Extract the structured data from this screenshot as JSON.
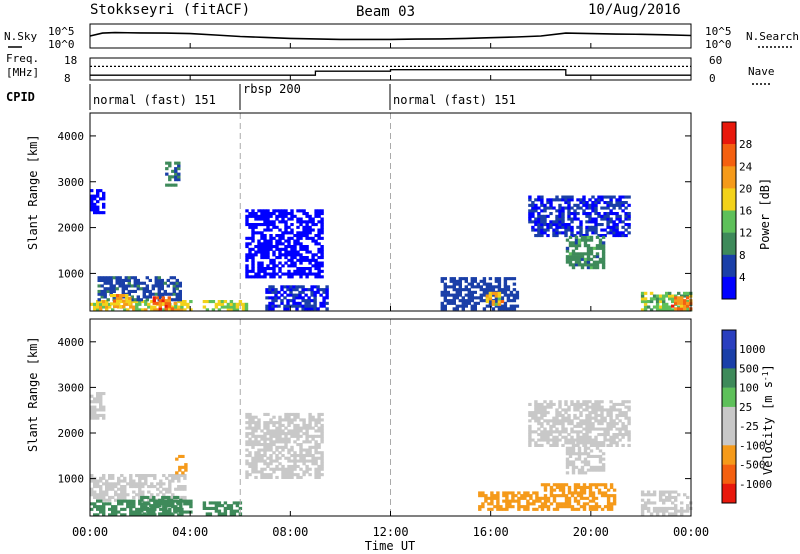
{
  "header": {
    "station": "Stokkseyri (fitACF)",
    "beam": "Beam 03",
    "date": "10/Aug/2016"
  },
  "top_panel": {
    "left_label": "N.Sky",
    "left_ticks": [
      "10^5",
      "10^0"
    ],
    "right_label": "N.Search",
    "right_ticks": [
      "10^5",
      "10^0"
    ]
  },
  "freq_panel": {
    "left_label_1": "Freq.",
    "left_label_2": "[MHz]",
    "left_ticks": [
      "18",
      "8"
    ],
    "right_label": "Nave",
    "right_ticks": [
      "60",
      "0"
    ]
  },
  "cpid": {
    "label": "CPID",
    "modes": [
      {
        "label": "normal (fast) 151",
        "start_hour": 0
      },
      {
        "label": "rbsp 200",
        "start_hour": 6
      },
      {
        "label": "normal (fast) 151",
        "start_hour": 12
      }
    ]
  },
  "x_axis": {
    "title": "Time UT",
    "ticks": [
      "00:00",
      "04:00",
      "08:00",
      "12:00",
      "16:00",
      "20:00",
      "00:00"
    ]
  },
  "colors": {
    "power_scale": [
      "#0000ff",
      "#1a3fa8",
      "#3e8a5a",
      "#5ec05a",
      "#f3d21a",
      "#f59a1a",
      "#f46010",
      "#e8180c"
    ],
    "velocity_scale": [
      "#e8180c",
      "#f46010",
      "#f59a1a",
      "#c8c8c8",
      "#c8c8c8",
      "#5ec05a",
      "#3e8a5a",
      "#1a3fa8",
      "#2a3fbf"
    ]
  },
  "chart_data": [
    {
      "type": "line",
      "panel": "sky-noise",
      "ylabel": "N.Sky",
      "x_unit": "hours UT",
      "xlim": [
        0,
        24
      ],
      "x": [
        0,
        0.5,
        1,
        2,
        3,
        4,
        5,
        6,
        7,
        8,
        9,
        10,
        11,
        12,
        13,
        14,
        15,
        16,
        17,
        18,
        19,
        20,
        21,
        22,
        23,
        24
      ],
      "y_fraction": [
        0.5,
        0.62,
        0.64,
        0.63,
        0.62,
        0.6,
        0.54,
        0.48,
        0.44,
        0.4,
        0.38,
        0.36,
        0.36,
        0.36,
        0.37,
        0.38,
        0.4,
        0.43,
        0.46,
        0.5,
        0.62,
        0.6,
        0.58,
        0.57,
        0.55,
        0.52
      ]
    },
    {
      "type": "line",
      "panel": "frequency",
      "ylabel": "Freq. [MHz]",
      "ylim": [
        8,
        18
      ],
      "x": [
        0,
        6,
        6,
        9,
        9,
        12,
        12,
        19,
        19,
        24
      ],
      "y": [
        10.2,
        10.2,
        10.2,
        10.2,
        12.0,
        12.0,
        12.7,
        12.7,
        10.2,
        10.2
      ]
    },
    {
      "type": "line",
      "panel": "nave",
      "ylabel": "Nave",
      "ylim": [
        0,
        60
      ],
      "x": [
        0,
        24
      ],
      "y": [
        37,
        37
      ]
    },
    {
      "type": "heatmap",
      "panel": "power",
      "ylabel": "Slant Range [km]",
      "colorbar_label": "Power [dB]",
      "colorbar_ticks": [
        "4",
        "8",
        "12",
        "16",
        "20",
        "24",
        "28"
      ],
      "ylim": [
        180,
        4500
      ],
      "yticks": [
        "1000",
        "2000",
        "3000",
        "4000"
      ],
      "xlim": [
        0,
        24
      ],
      "regions": [
        {
          "t0": 0.0,
          "t1": 4.0,
          "r0": 180,
          "r1": 400,
          "value": 20
        },
        {
          "t0": 0.3,
          "t1": 3.6,
          "r0": 400,
          "r1": 900,
          "value": 9
        },
        {
          "t0": 2.5,
          "t1": 3.4,
          "r0": 200,
          "r1": 500,
          "value": 27
        },
        {
          "t0": 0.8,
          "t1": 1.6,
          "r0": 250,
          "r1": 520,
          "value": 22
        },
        {
          "t0": 0.0,
          "t1": 0.6,
          "r0": 2300,
          "r1": 2800,
          "value": 5
        },
        {
          "t0": 3.0,
          "t1": 3.5,
          "r0": 2900,
          "r1": 3400,
          "value": 10
        },
        {
          "t0": 4.5,
          "t1": 6.2,
          "r0": 180,
          "r1": 420,
          "value": 18
        },
        {
          "t0": 6.2,
          "t1": 9.2,
          "r0": 900,
          "r1": 2400,
          "value": 5
        },
        {
          "t0": 7.0,
          "t1": 9.5,
          "r0": 200,
          "r1": 700,
          "value": 6
        },
        {
          "t0": 14.0,
          "t1": 17.0,
          "r0": 200,
          "r1": 900,
          "value": 8
        },
        {
          "t0": 15.8,
          "t1": 16.5,
          "r0": 300,
          "r1": 600,
          "value": 22
        },
        {
          "t0": 17.5,
          "t1": 21.5,
          "r0": 1800,
          "r1": 2700,
          "value": 6
        },
        {
          "t0": 19.0,
          "t1": 20.5,
          "r0": 1100,
          "r1": 1800,
          "value": 12
        },
        {
          "t0": 22.0,
          "t1": 24.0,
          "r0": 180,
          "r1": 600,
          "value": 16
        },
        {
          "t0": 23.2,
          "t1": 24.0,
          "r0": 200,
          "r1": 450,
          "value": 26
        }
      ]
    },
    {
      "type": "heatmap",
      "panel": "velocity",
      "ylabel": "Slant Range [km]",
      "colorbar_label": "Velocity [m s^-1]",
      "colorbar_ticks": [
        "1000",
        "500",
        "100",
        "25",
        "-25",
        "-100",
        "-500",
        "-1000"
      ],
      "ylim": [
        180,
        4500
      ],
      "yticks": [
        "1000",
        "2000",
        "3000",
        "4000"
      ],
      "xlim": [
        0,
        24
      ],
      "regions": [
        {
          "t0": 0.0,
          "t1": 3.8,
          "r0": 500,
          "r1": 1100,
          "value": 0
        },
        {
          "t0": 0.0,
          "t1": 4.0,
          "r0": 180,
          "r1": 500,
          "value": 200
        },
        {
          "t0": 2.0,
          "t1": 3.6,
          "r0": 200,
          "r1": 600,
          "value": 400
        },
        {
          "t0": 3.4,
          "t1": 3.8,
          "r0": 1100,
          "r1": 1500,
          "value": -300
        },
        {
          "t0": 0.0,
          "t1": 0.6,
          "r0": 2300,
          "r1": 2900,
          "value": 0
        },
        {
          "t0": 4.5,
          "t1": 6.0,
          "r0": 200,
          "r1": 500,
          "value": 300
        },
        {
          "t0": 6.2,
          "t1": 9.2,
          "r0": 1000,
          "r1": 2400,
          "value": 0
        },
        {
          "t0": 15.5,
          "t1": 18.0,
          "r0": 300,
          "r1": 700,
          "value": -300
        },
        {
          "t0": 18.0,
          "t1": 21.0,
          "r0": 300,
          "r1": 900,
          "value": -150
        },
        {
          "t0": 17.5,
          "t1": 21.5,
          "r0": 1700,
          "r1": 2700,
          "value": 0
        },
        {
          "t0": 19.0,
          "t1": 20.5,
          "r0": 1100,
          "r1": 1800,
          "value": 0
        },
        {
          "t0": 22.0,
          "t1": 24.0,
          "r0": 200,
          "r1": 700,
          "value": 0
        }
      ]
    }
  ]
}
